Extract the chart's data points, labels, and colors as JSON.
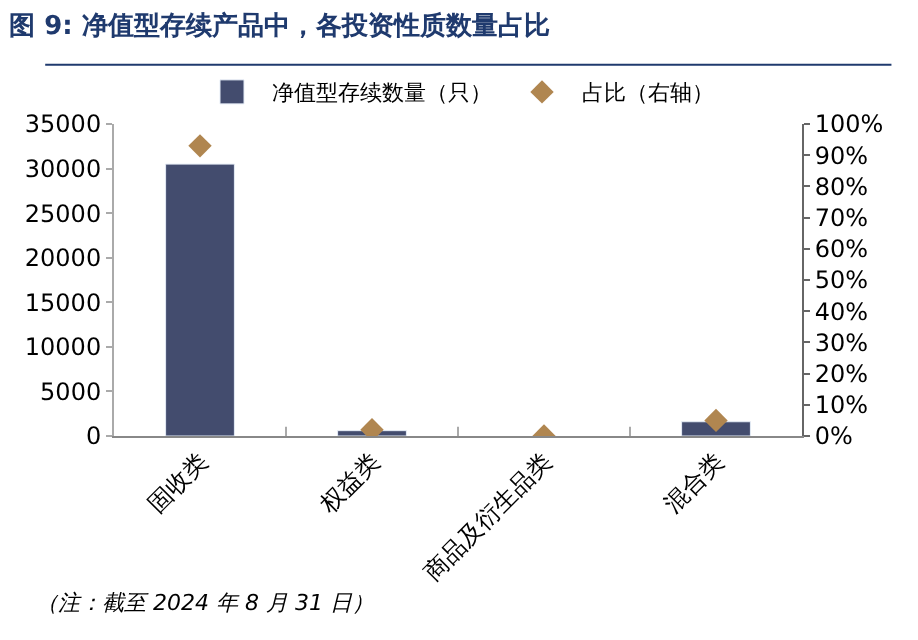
{
  "chart_data": {
    "type": "bar",
    "title": "图 9: 净值型存续产品中，各投资性质数量占比",
    "categories": [
      "固收类",
      "权益类",
      "商品及衍生品类",
      "混合类"
    ],
    "series": [
      {
        "name": "净值型存续数量（只）",
        "color": "#434c6e",
        "values": [
          30500,
          600,
          null,
          1600
        ]
      },
      {
        "name": "占比（右轴）",
        "type": "scatter",
        "axis": "y2",
        "marker": "diamond",
        "color": "#b08650",
        "values": [
          93,
          2,
          0,
          5
        ]
      }
    ],
    "ylim": [
      0,
      35000
    ],
    "yticks": [
      0,
      5000,
      10000,
      15000,
      20000,
      25000,
      30000,
      35000
    ],
    "y2lim": [
      0,
      100
    ],
    "y2ticks": [
      {
        "value": 0,
        "label": "0%"
      },
      {
        "value": 10,
        "label": "10%"
      },
      {
        "value": 20,
        "label": "20%"
      },
      {
        "value": 30,
        "label": "30%"
      },
      {
        "value": 40,
        "label": "40%"
      },
      {
        "value": 50,
        "label": "50%"
      },
      {
        "value": 60,
        "label": "60%"
      },
      {
        "value": 70,
        "label": "70%"
      },
      {
        "value": 80,
        "label": "80%"
      },
      {
        "value": 90,
        "label": "90%"
      },
      {
        "value": 100,
        "label": "100%"
      }
    ],
    "legend": "top",
    "annotations": [
      "（注：截至 2024 年 8 月 31 日）"
    ]
  }
}
